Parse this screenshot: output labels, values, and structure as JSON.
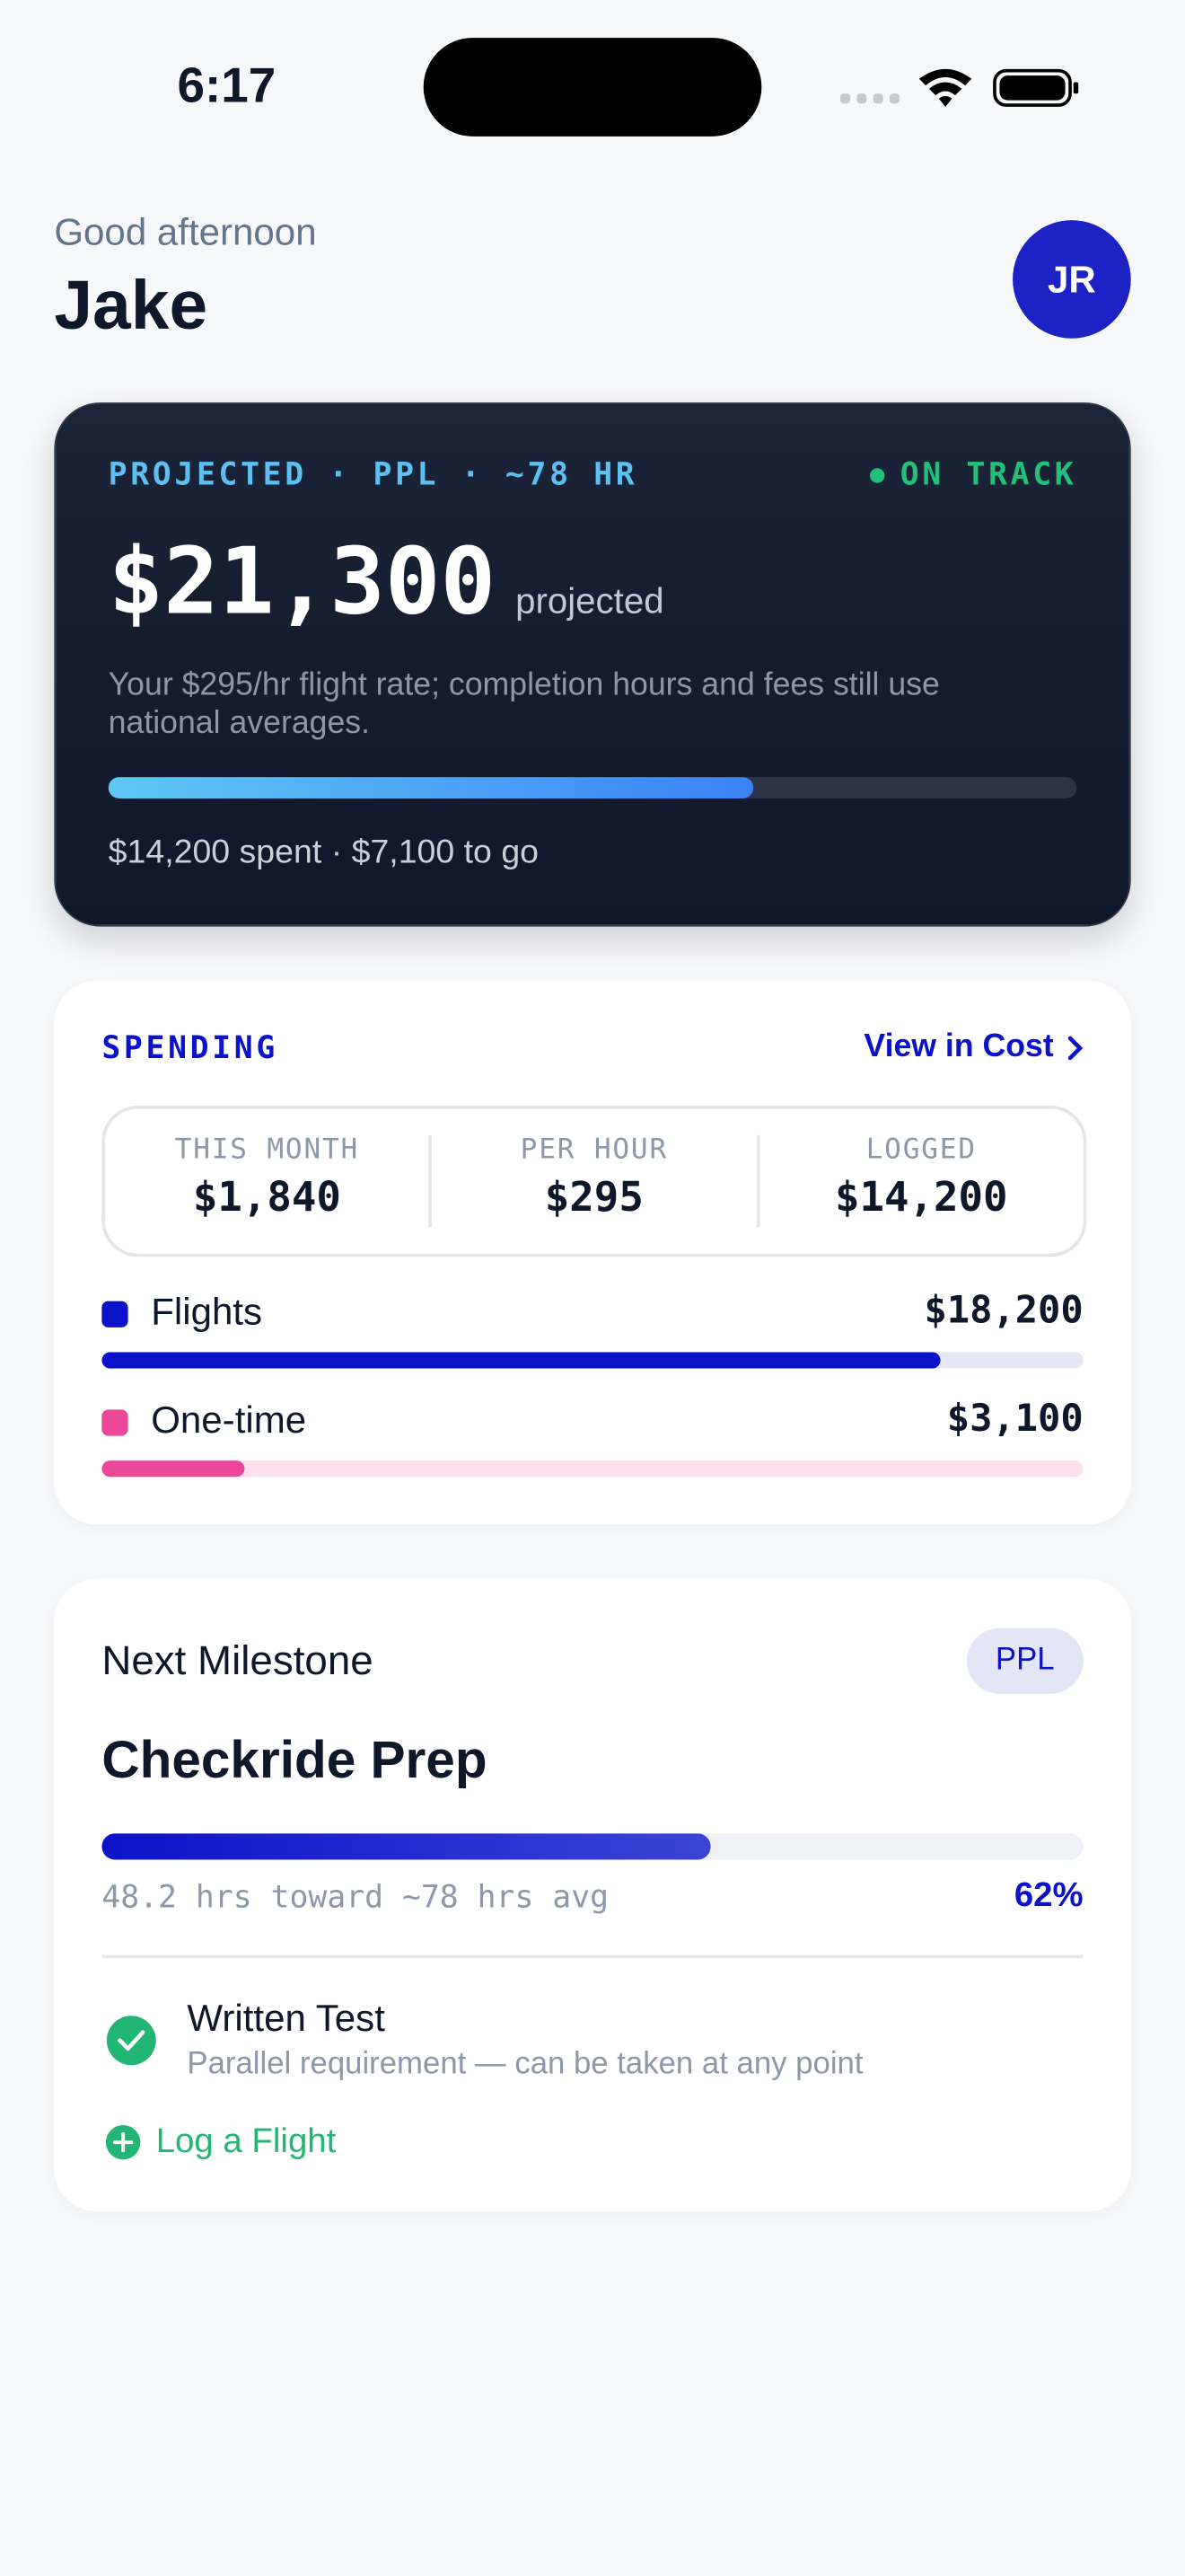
{
  "status_bar": {
    "time": "6:17"
  },
  "header": {
    "greeting": "Good afternoon",
    "name": "Jake",
    "avatar": "JR"
  },
  "projection": {
    "eyebrow": "PROJECTED · PPL · ~78 HR",
    "status": "ON TRACK",
    "total": {
      "value": 21300,
      "label": "$21,300"
    },
    "total_suffix": "projected",
    "note": "Your $295/hr flight rate; completion hours and fees still use national averages.",
    "spent": {
      "value": 14200,
      "label": "$14,200 spent"
    },
    "separator": "·",
    "to_go": "$7,100 to go"
  },
  "spending": {
    "title": "SPENDING",
    "link": "View in Cost",
    "stats": [
      {
        "label": "THIS MONTH",
        "value": "$1,840"
      },
      {
        "label": "PER HOUR",
        "value": "$295"
      },
      {
        "label": "LOGGED",
        "value": "$14,200"
      }
    ],
    "categories": [
      {
        "name": "Flights",
        "color": "#0b12c9",
        "track": "#e6e8f5",
        "value": 18200,
        "label": "$18,200"
      },
      {
        "name": "One-time",
        "color": "#ec4899",
        "track": "#fbe1ee",
        "value": 3100,
        "label": "$3,100"
      }
    ]
  },
  "milestone": {
    "title": "Next Milestone",
    "badge": "PPL",
    "name": "Checkride Prep",
    "progress": {
      "value": 62,
      "label": "62%"
    },
    "hours_note": "48.2 hrs toward ~78 hrs avg",
    "task": {
      "title": "Written Test",
      "subtitle": "Parallel requirement — can be taken at any point"
    },
    "action": "Log a Flight"
  }
}
